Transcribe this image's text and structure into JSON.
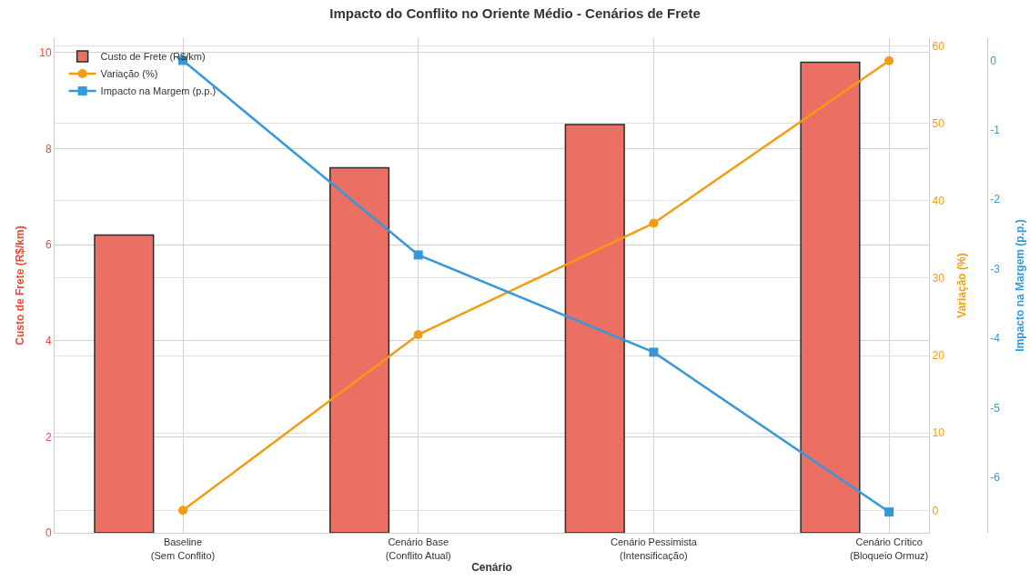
{
  "chart_data": {
    "type": "bar",
    "title": "Impacto do Conflito no Oriente Médio - Cenários de Frete",
    "xlabel": "Cenário",
    "ylabel": "Custo de Frete (R$/km)",
    "y2label": "Variação (%)",
    "y3label": "Impacto na Margem (p.p.)",
    "categories": [
      "Baseline\n(Sem Conflito)",
      "Cenário Base\n(Conflito Atual)",
      "Cenário Pessimista\n(Intensificação)",
      "Cenário Crítico\n(Bloqueio Ormuz)"
    ],
    "series": [
      {
        "name": "Custo de Frete (R$/km)",
        "color": "#eb6f62",
        "values": [
          6.2,
          7.6,
          8.5,
          9.8
        ]
      },
      {
        "name": "Variação (%)",
        "type": "line",
        "axis": "y2",
        "marker": "circle",
        "color": "#f39c12",
        "values": [
          0,
          22.7,
          37.1,
          58.1
        ]
      },
      {
        "name": "Impacto na Margem (p.p.)",
        "type": "line",
        "axis": "y3",
        "marker": "square",
        "color": "#3498db",
        "values": [
          0,
          -2.8,
          -4.2,
          -6.5
        ]
      }
    ],
    "ylim": [
      0,
      10.3
    ],
    "yticks": [
      0,
      2,
      4,
      6,
      8,
      10
    ],
    "y2lim": [
      -2.9,
      61
    ],
    "y2ticks": [
      0,
      10,
      20,
      30,
      40,
      50,
      60
    ],
    "y3lim": [
      -6.8,
      0.32
    ],
    "y3ticks": [
      -6,
      -5,
      -4,
      -3,
      -2,
      -1,
      0
    ],
    "grid": true,
    "legend": "top left",
    "line_style": "solid"
  }
}
